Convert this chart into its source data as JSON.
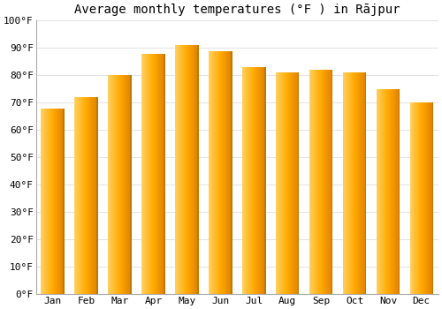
{
  "title": "Average monthly temperatures (°F ) in Rājpur",
  "months": [
    "Jan",
    "Feb",
    "Mar",
    "Apr",
    "May",
    "Jun",
    "Jul",
    "Aug",
    "Sep",
    "Oct",
    "Nov",
    "Dec"
  ],
  "values": [
    68,
    72,
    80,
    88,
    91,
    89,
    83,
    81,
    82,
    81,
    75,
    70
  ],
  "bar_color_main": "#FFAA00",
  "bar_color_light": "#FFD060",
  "bar_color_dark": "#E08000",
  "ylim": [
    0,
    100
  ],
  "yticks": [
    0,
    10,
    20,
    30,
    40,
    50,
    60,
    70,
    80,
    90,
    100
  ],
  "ytick_labels": [
    "0°F",
    "10°F",
    "20°F",
    "30°F",
    "40°F",
    "50°F",
    "60°F",
    "70°F",
    "80°F",
    "90°F",
    "100°F"
  ],
  "background_color": "#ffffff",
  "grid_color": "#dddddd",
  "title_fontsize": 10,
  "tick_fontsize": 8,
  "bar_width": 0.7
}
